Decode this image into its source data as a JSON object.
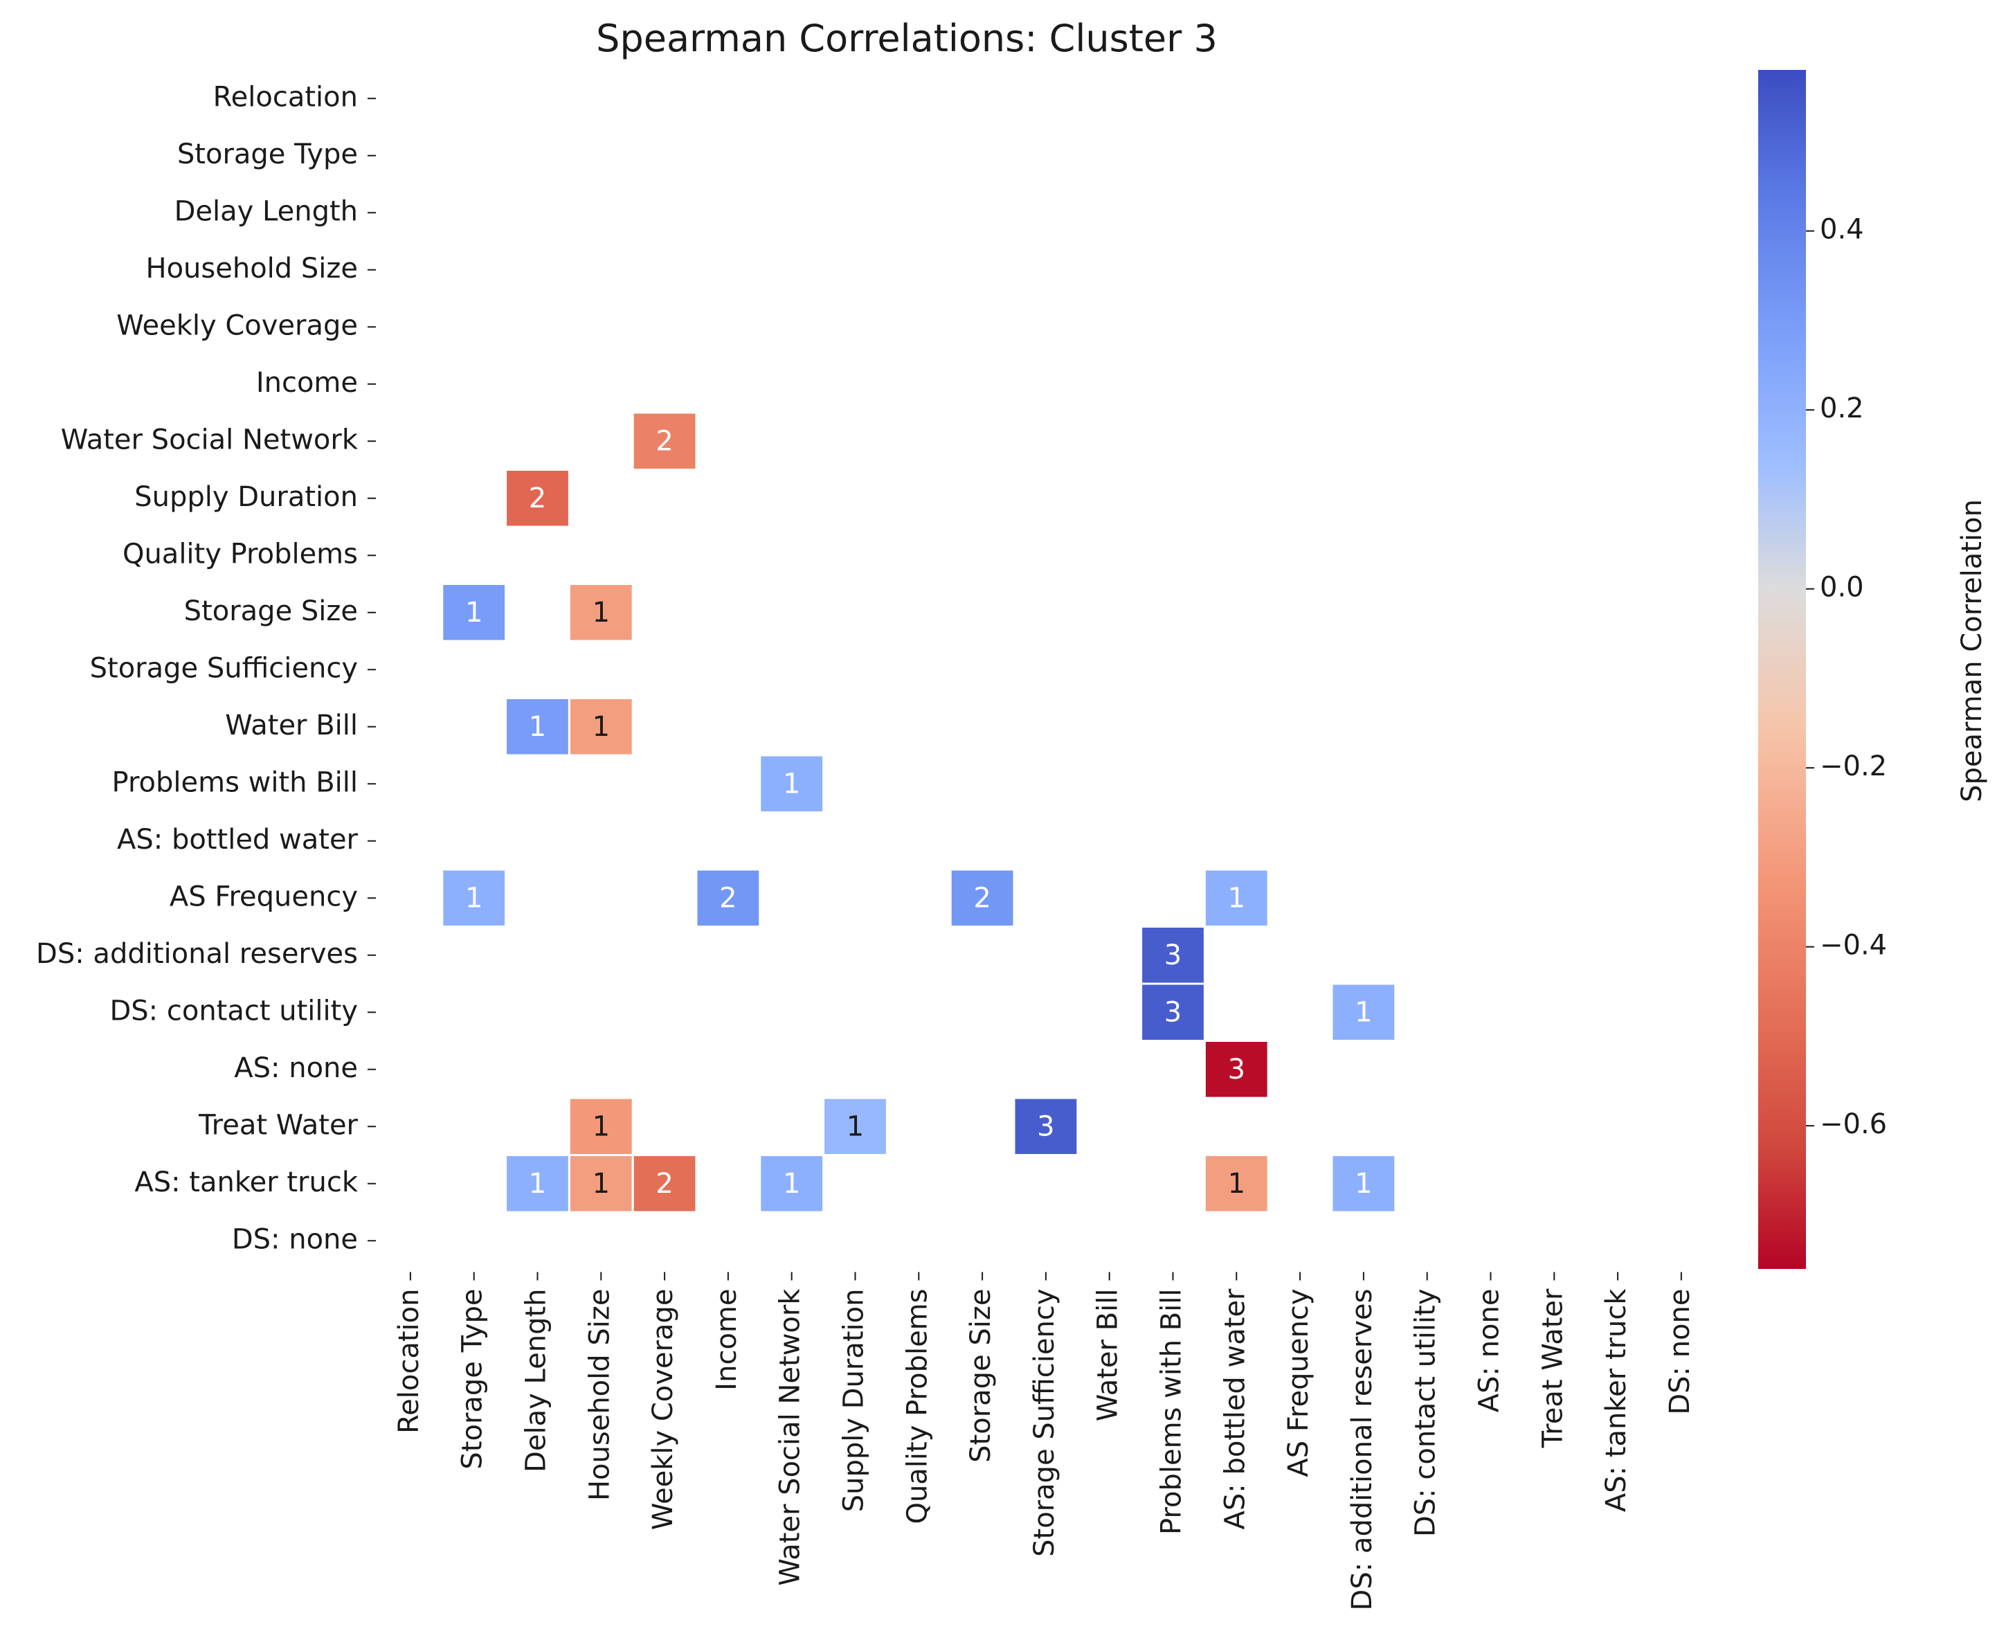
{
  "chart_data": {
    "type": "heatmap",
    "title": "Spearman Correlations: Cluster 3",
    "row_labels": [
      "Relocation",
      "Storage Type",
      "Delay Length",
      "Household Size",
      "Weekly Coverage",
      "Income",
      "Water Social Network",
      "Supply Duration",
      "Quality Problems",
      "Storage Size",
      "Storage Sufficiency",
      "Water Bill",
      "Problems with Bill",
      "AS: bottled water",
      "AS Frequency",
      "DS: additional reserves",
      "DS: contact utility",
      "AS: none",
      "Treat Water",
      "AS: tanker truck",
      "DS: none"
    ],
    "col_labels": [
      "Relocation",
      "Storage Type",
      "Delay Length",
      "Household Size",
      "Weekly Coverage",
      "Income",
      "Water Social Network",
      "Supply Duration",
      "Quality Problems",
      "Storage Size",
      "Storage Sufficiency",
      "Water Bill",
      "Problems with Bill",
      "AS: bottled water",
      "AS Frequency",
      "DS: additional reserves",
      "DS: contact utility",
      "AS: none",
      "Treat Water",
      "AS: tanker truck",
      "DS: none"
    ],
    "cells": [
      {
        "row": 6,
        "col": 4,
        "value": -0.38,
        "label": "2"
      },
      {
        "row": 7,
        "col": 2,
        "value": -0.47,
        "label": "2"
      },
      {
        "row": 9,
        "col": 1,
        "value": 0.38,
        "label": "1"
      },
      {
        "row": 9,
        "col": 3,
        "value": -0.28,
        "label": "1"
      },
      {
        "row": 11,
        "col": 2,
        "value": 0.38,
        "label": "1"
      },
      {
        "row": 11,
        "col": 3,
        "value": -0.28,
        "label": "1"
      },
      {
        "row": 12,
        "col": 6,
        "value": 0.3,
        "label": "1"
      },
      {
        "row": 14,
        "col": 1,
        "value": 0.3,
        "label": "1"
      },
      {
        "row": 14,
        "col": 5,
        "value": 0.4,
        "label": "2"
      },
      {
        "row": 14,
        "col": 9,
        "value": 0.4,
        "label": "2"
      },
      {
        "row": 14,
        "col": 13,
        "value": 0.3,
        "label": "1"
      },
      {
        "row": 15,
        "col": 12,
        "value": 0.54,
        "label": "3"
      },
      {
        "row": 16,
        "col": 12,
        "value": 0.54,
        "label": "3"
      },
      {
        "row": 16,
        "col": 15,
        "value": 0.3,
        "label": "1"
      },
      {
        "row": 17,
        "col": 13,
        "value": -0.74,
        "label": "3"
      },
      {
        "row": 18,
        "col": 3,
        "value": -0.3,
        "label": "1"
      },
      {
        "row": 18,
        "col": 7,
        "value": 0.25,
        "label": "1"
      },
      {
        "row": 18,
        "col": 10,
        "value": 0.54,
        "label": "3"
      },
      {
        "row": 19,
        "col": 2,
        "value": 0.3,
        "label": "1"
      },
      {
        "row": 19,
        "col": 3,
        "value": -0.28,
        "label": "1"
      },
      {
        "row": 19,
        "col": 4,
        "value": -0.44,
        "label": "2"
      },
      {
        "row": 19,
        "col": 6,
        "value": 0.3,
        "label": "1"
      },
      {
        "row": 19,
        "col": 13,
        "value": -0.28,
        "label": "1"
      },
      {
        "row": 19,
        "col": 15,
        "value": 0.3,
        "label": "1"
      }
    ],
    "colorbar": {
      "label": "Spearman Correlation",
      "vmin": -0.76,
      "vmax": 0.58,
      "ticks": [
        0.4,
        0.2,
        0.0,
        -0.2,
        -0.4,
        -0.6
      ],
      "tick_labels": [
        "0.4",
        "0.2",
        "0.0",
        "−0.2",
        "−0.4",
        "−0.6"
      ],
      "colormap": "coolwarm_r"
    },
    "colors": {
      "high": "#3b4cc0",
      "mid": "#dddcdc",
      "low": "#b40426"
    }
  }
}
